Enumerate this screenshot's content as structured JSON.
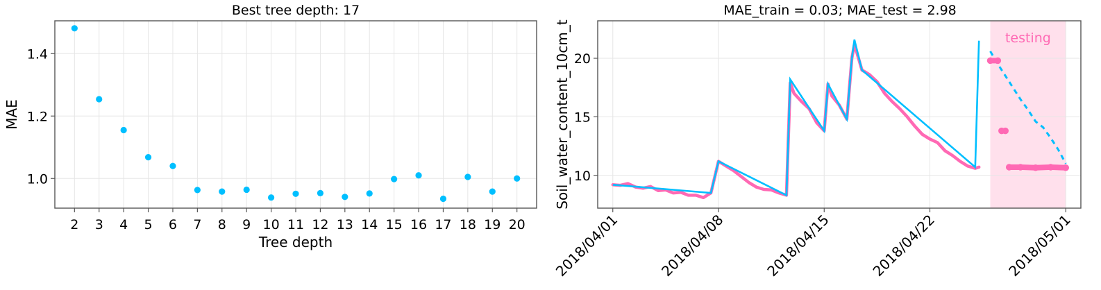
{
  "colors": {
    "model": "#00bfff",
    "observed": "#ff69b4",
    "testing_band": "#ffe0ec",
    "testing_text": "#ff69b4",
    "grid": "#e6e6e6"
  },
  "chart_data": [
    {
      "type": "scatter",
      "title": "Best tree depth: 17",
      "xlabel": "Tree depth",
      "ylabel": "MAE",
      "xlim": [
        1.2,
        20.8
      ],
      "ylim": [
        0.905,
        1.505
      ],
      "grid": true,
      "x_ticks": [
        "2",
        "3",
        "4",
        "5",
        "6",
        "7",
        "8",
        "9",
        "10",
        "11",
        "12",
        "13",
        "14",
        "15",
        "16",
        "17",
        "18",
        "19",
        "20"
      ],
      "y_ticks": [
        "1.0",
        "1.2",
        "1.4"
      ],
      "series": [
        {
          "color": "#00bfff",
          "x": [
            2,
            3,
            4,
            5,
            6,
            7,
            8,
            9,
            10,
            11,
            12,
            13,
            14,
            15,
            16,
            17,
            18,
            19,
            20
          ],
          "y": [
            1.481,
            1.254,
            1.155,
            1.068,
            1.04,
            0.963,
            0.958,
            0.964,
            0.939,
            0.951,
            0.953,
            0.941,
            0.952,
            0.998,
            1.01,
            0.935,
            1.005,
            0.958,
            1.0
          ]
        }
      ]
    },
    {
      "type": "line",
      "title": "MAE_train = 0.03; MAE_test = 2.98",
      "xlabel": "",
      "ylabel": "Soil_water_content_10cm_t",
      "x_type": "date",
      "xlim": [
        "2018-03-31",
        "2018-05-02"
      ],
      "ylim": [
        7.2,
        23.2
      ],
      "grid": true,
      "x_ticks": [
        "2018/04/01",
        "2018/04/08",
        "2018/04/15",
        "2018/04/22",
        "2018/05/01"
      ],
      "y_ticks": [
        "10",
        "15",
        "20"
      ],
      "annotation": "testing",
      "testing_period": [
        "2018-04-26",
        "2018-05-01"
      ],
      "series": [
        {
          "style": "observed-train",
          "color": "#ff69b4",
          "points": [
            [
              "2018-04-01",
              9.2
            ],
            [
              "2018-04-01 12:00",
              9.15
            ],
            [
              "2018-04-02",
              9.3
            ],
            [
              "2018-04-02 12:00",
              9.0
            ],
            [
              "2018-04-03",
              8.9
            ],
            [
              "2018-04-03 12:00",
              9.05
            ],
            [
              "2018-04-04",
              8.7
            ],
            [
              "2018-04-04 12:00",
              8.75
            ],
            [
              "2018-04-05",
              8.5
            ],
            [
              "2018-04-05 12:00",
              8.55
            ],
            [
              "2018-04-06",
              8.3
            ],
            [
              "2018-04-06 12:00",
              8.3
            ],
            [
              "2018-04-07",
              8.1
            ],
            [
              "2018-04-07 12:00",
              8.5
            ],
            [
              "2018-04-08",
              11.2
            ],
            [
              "2018-04-08 12:00",
              10.8
            ],
            [
              "2018-04-09",
              10.4
            ],
            [
              "2018-04-09 12:00",
              9.9
            ],
            [
              "2018-04-10",
              9.4
            ],
            [
              "2018-04-10 12:00",
              9.0
            ],
            [
              "2018-04-11",
              8.8
            ],
            [
              "2018-04-11 12:00",
              8.75
            ],
            [
              "2018-04-12",
              8.5
            ],
            [
              "2018-04-12 12:00",
              8.3
            ],
            [
              "2018-04-12 18:00",
              17.9
            ],
            [
              "2018-04-13",
              17.0
            ],
            [
              "2018-04-13 12:00",
              16.3
            ],
            [
              "2018-04-14",
              15.7
            ],
            [
              "2018-04-14 12:00",
              14.5
            ],
            [
              "2018-04-15",
              13.8
            ],
            [
              "2018-04-15 06:00",
              17.8
            ],
            [
              "2018-04-15 12:00",
              16.8
            ],
            [
              "2018-04-16",
              16.0
            ],
            [
              "2018-04-16 12:00",
              14.8
            ],
            [
              "2018-04-16 20:00",
              20.0
            ],
            [
              "2018-04-17",
              21.2
            ],
            [
              "2018-04-17 12:00",
              19.0
            ],
            [
              "2018-04-18",
              18.6
            ],
            [
              "2018-04-18 12:00",
              18.0
            ],
            [
              "2018-04-19",
              17.0
            ],
            [
              "2018-04-19 12:00",
              16.3
            ],
            [
              "2018-04-20",
              15.7
            ],
            [
              "2018-04-20 12:00",
              15.0
            ],
            [
              "2018-04-21",
              14.2
            ],
            [
              "2018-04-21 12:00",
              13.5
            ],
            [
              "2018-04-22",
              13.1
            ],
            [
              "2018-04-22 12:00",
              12.8
            ],
            [
              "2018-04-23",
              12.1
            ],
            [
              "2018-04-23 12:00",
              11.7
            ],
            [
              "2018-04-24",
              11.2
            ],
            [
              "2018-04-24 12:00",
              10.8
            ],
            [
              "2018-04-25",
              10.6
            ],
            [
              "2018-04-25 06:00",
              10.7
            ]
          ]
        },
        {
          "style": "model-train",
          "color": "#00bfff",
          "points": [
            [
              "2018-04-01",
              9.2
            ],
            [
              "2018-04-07 12:00",
              8.5
            ],
            [
              "2018-04-08",
              11.2
            ],
            [
              "2018-04-12 12:00",
              8.3
            ],
            [
              "2018-04-12 18:00",
              18.2
            ],
            [
              "2018-04-15",
              13.8
            ],
            [
              "2018-04-15 06:00",
              17.8
            ],
            [
              "2018-04-16 12:00",
              14.8
            ],
            [
              "2018-04-16 20:00",
              20.0
            ],
            [
              "2018-04-17",
              21.6
            ],
            [
              "2018-04-17 12:00",
              19.0
            ],
            [
              "2018-04-25",
              10.7
            ],
            [
              "2018-04-25 06:00",
              21.5
            ]
          ]
        },
        {
          "style": "model-test",
          "color": "#00bfff",
          "points": [
            [
              "2018-04-26",
              20.6
            ],
            [
              "2018-04-26 12:00",
              19.5
            ],
            [
              "2018-04-27",
              18.5
            ],
            [
              "2018-04-27 12:00",
              17.5
            ],
            [
              "2018-04-28",
              16.5
            ],
            [
              "2018-04-28 12:00",
              15.6
            ],
            [
              "2018-04-29",
              14.6
            ],
            [
              "2018-04-29 12:00",
              14.1
            ],
            [
              "2018-04-30",
              13.2
            ],
            [
              "2018-04-30 12:00",
              12.2
            ],
            [
              "2018-05-01",
              11.0
            ]
          ]
        },
        {
          "style": "observed-test",
          "color": "#ff69b4",
          "points": [
            [
              "2018-04-26",
              19.8
            ],
            [
              "2018-04-26 12:00",
              19.8
            ],
            [
              "2018-04-26 18:00",
              13.8
            ],
            [
              "2018-04-27",
              13.8
            ],
            [
              "2018-04-27 06:00",
              10.7
            ],
            [
              "2018-04-28",
              10.7
            ],
            [
              "2018-04-29",
              10.65
            ],
            [
              "2018-04-30",
              10.7
            ],
            [
              "2018-05-01",
              10.65
            ]
          ]
        }
      ]
    }
  ]
}
